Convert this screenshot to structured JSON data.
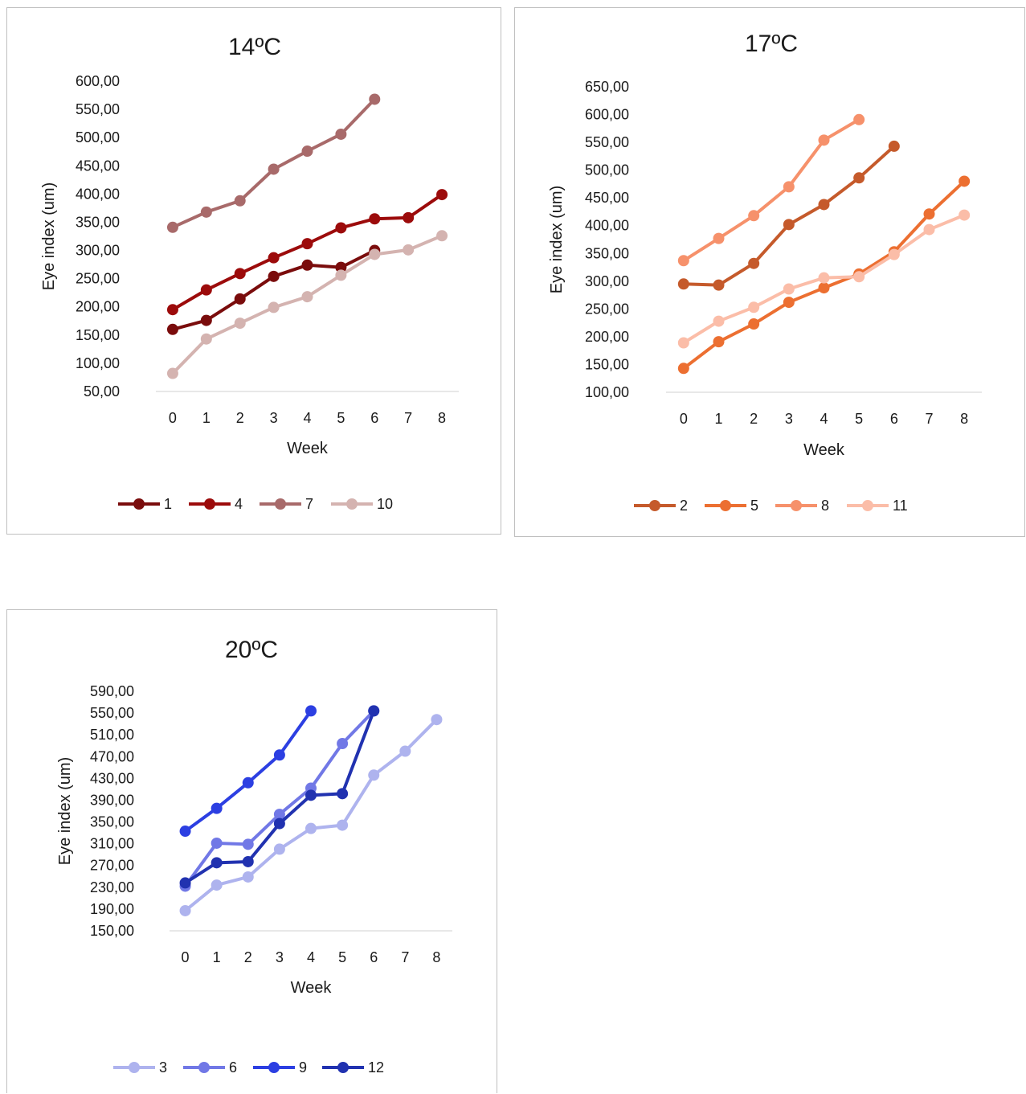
{
  "chart_data": [
    {
      "type": "line",
      "title": "14ºC",
      "xlabel": "Week",
      "ylabel": "Eye index (um)",
      "x": [
        0,
        1,
        2,
        3,
        4,
        5,
        6,
        7,
        8
      ],
      "x_tick_labels": [
        "0",
        "1",
        "2",
        "3",
        "4",
        "5",
        "6",
        "7",
        "8"
      ],
      "ylim": [
        50,
        600
      ],
      "y_tick_labels": [
        "600,00",
        "550,00",
        "500,00",
        "450,00",
        "400,00",
        "350,00",
        "300,00",
        "250,00",
        "200,00",
        "150,00",
        "100,00",
        "50,00"
      ],
      "grid": false,
      "legend": "bottom",
      "series": [
        {
          "name": "1",
          "color": "#7a0c0c",
          "values": [
            160,
            176,
            214,
            254,
            274,
            270,
            300,
            null,
            null
          ]
        },
        {
          "name": "4",
          "color": "#9c0b0b",
          "values": [
            195,
            230,
            259,
            287,
            312,
            340,
            356,
            358,
            399
          ]
        },
        {
          "name": "7",
          "color": "#a86a6a",
          "values": [
            341,
            368,
            388,
            444,
            476,
            506,
            568,
            null,
            null
          ]
        },
        {
          "name": "10",
          "color": "#d4b3b0",
          "values": [
            82,
            143,
            171,
            199,
            218,
            256,
            293,
            301,
            326
          ]
        }
      ]
    },
    {
      "type": "line",
      "title": "17ºC",
      "xlabel": "Week",
      "ylabel": "Eye index (um)",
      "x": [
        0,
        1,
        2,
        3,
        4,
        5,
        6,
        7,
        8
      ],
      "x_tick_labels": [
        "0",
        "1",
        "2",
        "3",
        "4",
        "5",
        "6",
        "7",
        "8"
      ],
      "ylim": [
        100,
        650
      ],
      "y_tick_labels": [
        "650,00",
        "600,00",
        "550,00",
        "500,00",
        "450,00",
        "400,00",
        "350,00",
        "300,00",
        "250,00",
        "200,00",
        "150,00",
        "100,00"
      ],
      "grid": false,
      "legend": "bottom",
      "series": [
        {
          "name": "2",
          "color": "#c55a2b",
          "values": [
            295,
            293,
            332,
            402,
            438,
            486,
            543,
            null,
            null
          ]
        },
        {
          "name": "5",
          "color": "#ec6f31",
          "values": [
            143,
            191,
            223,
            262,
            288,
            313,
            353,
            421,
            480
          ]
        },
        {
          "name": "8",
          "color": "#f6916b",
          "values": [
            337,
            377,
            418,
            470,
            554,
            591,
            null,
            null,
            null
          ]
        },
        {
          "name": "11",
          "color": "#fbbda8",
          "values": [
            189,
            228,
            253,
            286,
            306,
            308,
            348,
            393,
            419
          ]
        }
      ]
    },
    {
      "type": "line",
      "title": "20ºC",
      "xlabel": "Week",
      "ylabel": "Eye index (um)",
      "x": [
        0,
        1,
        2,
        3,
        4,
        5,
        6,
        7,
        8
      ],
      "x_tick_labels": [
        "0",
        "1",
        "2",
        "3",
        "4",
        "5",
        "6",
        "7",
        "8"
      ],
      "ylim": [
        150,
        590
      ],
      "y_tick_labels": [
        "590,00",
        "550,00",
        "510,00",
        "470,00",
        "430,00",
        "390,00",
        "350,00",
        "310,00",
        "270,00",
        "230,00",
        "190,00",
        "150,00"
      ],
      "grid": false,
      "legend": "bottom",
      "series": [
        {
          "name": "3",
          "color": "#aeb3ee",
          "values": [
            187,
            234,
            249,
            300,
            338,
            344,
            436,
            480,
            538
          ]
        },
        {
          "name": "6",
          "color": "#7178e6",
          "values": [
            232,
            311,
            309,
            364,
            412,
            494,
            554,
            null,
            null
          ]
        },
        {
          "name": "9",
          "color": "#2c3fe2",
          "values": [
            333,
            375,
            422,
            473,
            554,
            null,
            null,
            null,
            null
          ]
        },
        {
          "name": "12",
          "color": "#2132b0",
          "values": [
            238,
            275,
            277,
            347,
            399,
            402,
            554,
            null,
            null
          ]
        }
      ]
    }
  ]
}
